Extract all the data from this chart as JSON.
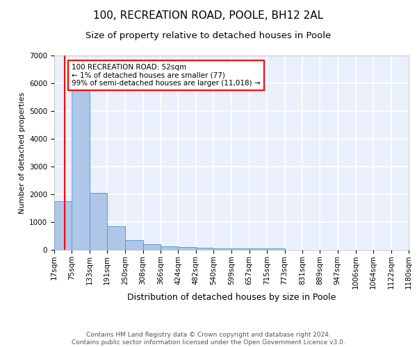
{
  "title1": "100, RECREATION ROAD, POOLE, BH12 2AL",
  "title2": "Size of property relative to detached houses in Poole",
  "xlabel": "Distribution of detached houses by size in Poole",
  "ylabel": "Number of detached properties",
  "bin_edges": [
    17,
    75,
    133,
    191,
    250,
    308,
    366,
    424,
    482,
    540,
    599,
    657,
    715,
    773,
    831,
    889,
    947,
    1006,
    1064,
    1122,
    1180
  ],
  "bar_heights": [
    1750,
    5800,
    2050,
    850,
    350,
    205,
    120,
    100,
    80,
    60,
    50,
    45,
    45,
    0,
    0,
    0,
    0,
    0,
    0,
    0
  ],
  "bar_color": "#aec6e8",
  "bar_edge_color": "#5b9bd5",
  "bg_color": "#eaf0fb",
  "grid_color": "#ffffff",
  "red_line_x": 52,
  "annotation_line1": "100 RECREATION ROAD: 52sqm",
  "annotation_line2": "← 1% of detached houses are smaller (77)",
  "annotation_line3": "99% of semi-detached houses are larger (11,018) →",
  "ylim": [
    0,
    7000
  ],
  "yticks": [
    0,
    1000,
    2000,
    3000,
    4000,
    5000,
    6000,
    7000
  ],
  "footer_text": "Contains HM Land Registry data © Crown copyright and database right 2024.\nContains public sector information licensed under the Open Government Licence v3.0.",
  "title1_fontsize": 11,
  "title2_fontsize": 9.5,
  "xlabel_fontsize": 9,
  "ylabel_fontsize": 8,
  "tick_fontsize": 7.5,
  "footer_fontsize": 6.5,
  "annot_fontsize": 7.5
}
